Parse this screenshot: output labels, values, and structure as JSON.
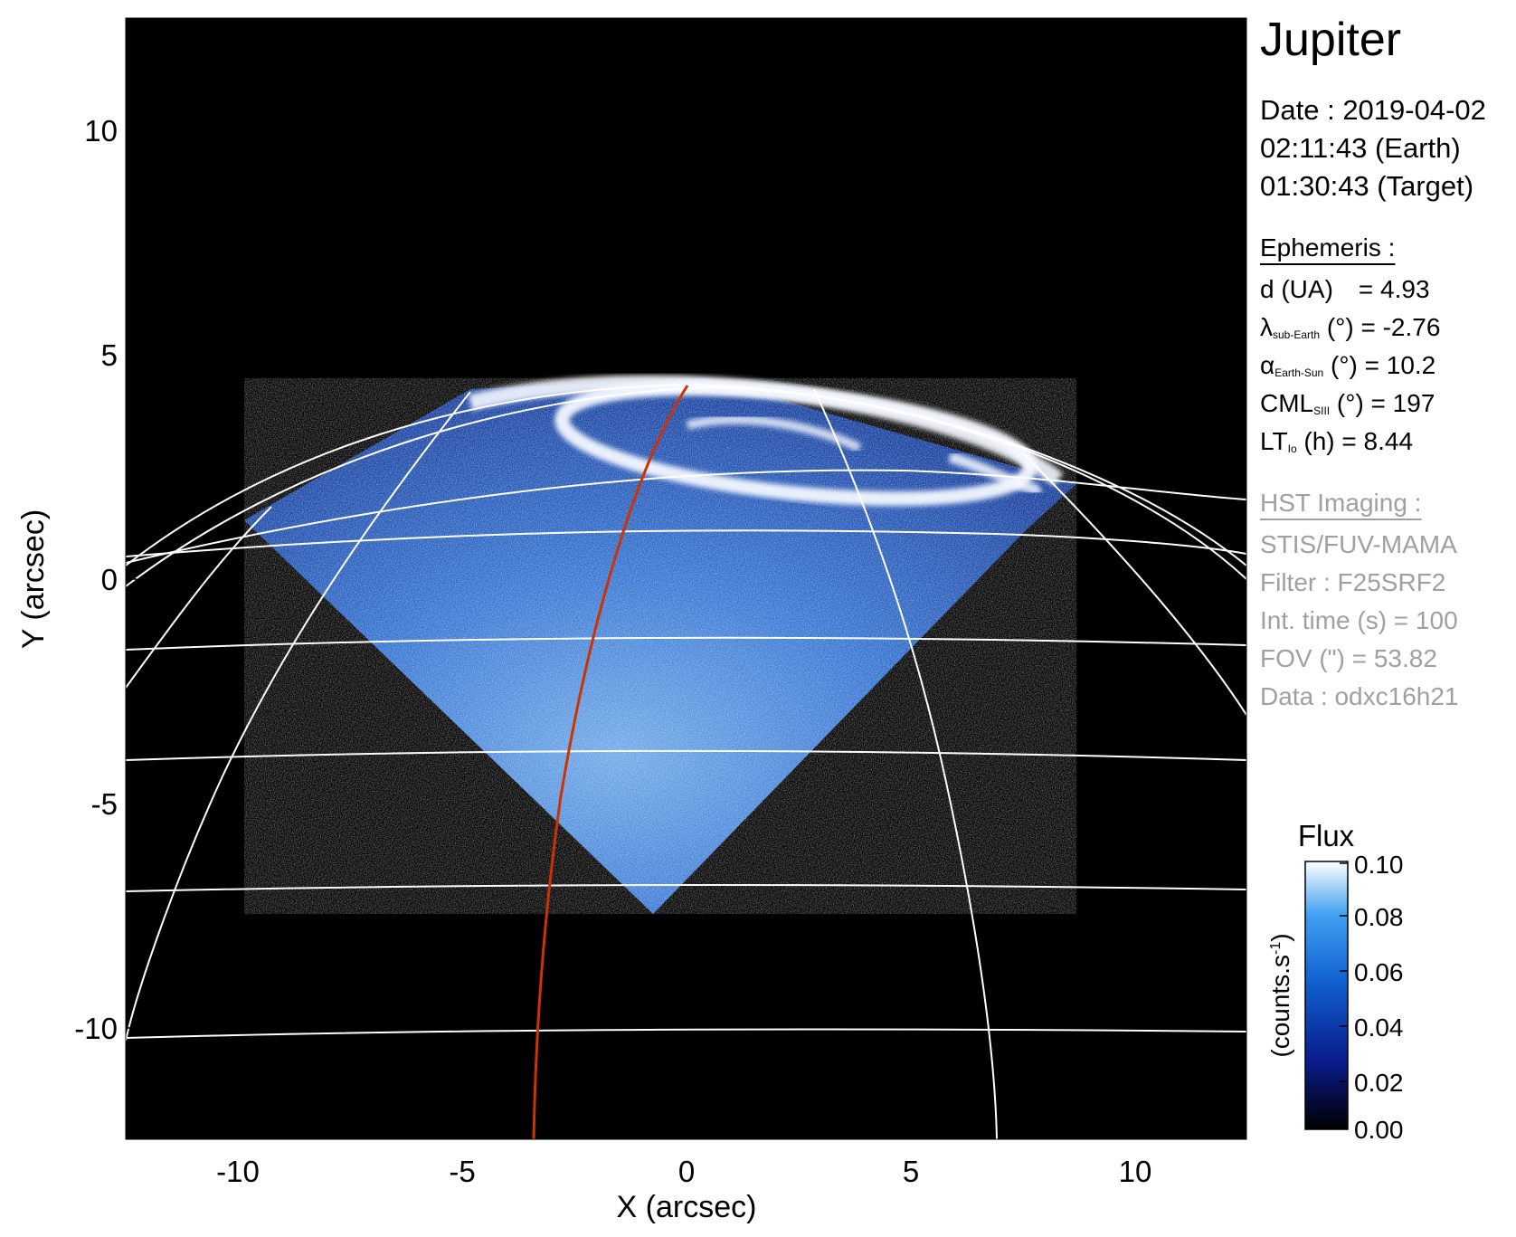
{
  "figure": {
    "x_label": "X (arcsec)",
    "y_label": "Y (arcsec)",
    "x_ticks": [
      "-10",
      "-5",
      "0",
      "5",
      "10"
    ],
    "y_ticks": [
      "10",
      "5",
      "0",
      "-5",
      "-10"
    ],
    "xlim": [
      -12.5,
      12.5
    ],
    "ylim": [
      -12.5,
      12.5
    ],
    "background_color": "#000000",
    "grid_color": "#ffffff",
    "meridian_highlight_color": "#cc3300"
  },
  "info": {
    "planet": "Jupiter",
    "date_line": "Date : 2019-04-02",
    "time_earth": "02:11:43 (Earth)",
    "time_target": "01:30:43 (Target)",
    "ephemeris_header": "Ephemeris :",
    "d_label": "d (UA)",
    "d_value": "= 4.93",
    "lambda_symbol": "λ",
    "lambda_sub": "sub-Earth",
    "lambda_value": "(°) = -2.76",
    "alpha_symbol": "α",
    "alpha_sub": "Earth-Sun",
    "alpha_value": "(°) = 10.2",
    "cml_label": "CML",
    "cml_sub": "SIII",
    "cml_value": "(°) = 197",
    "lt_label": "LT",
    "lt_sub": "Io",
    "lt_value": "(h) = 8.44",
    "hst_header": "HST Imaging :",
    "instrument": "STIS/FUV-MAMA",
    "filter": "Filter : F25SRF2",
    "int_time": "Int. time (s) = 100",
    "fov": "FOV (\") = 53.82",
    "data_id": "Data : odxc16h21"
  },
  "colorbar": {
    "title": "Flux",
    "unit_label": "(counts.s",
    "unit_exp": "-1",
    "unit_close": ")",
    "ticks": [
      "0.10",
      "0.08",
      "0.06",
      "0.04",
      "0.02",
      "0.00"
    ],
    "colors": [
      "#000000",
      "#0a1a8a",
      "#1060d0",
      "#40a0f0",
      "#ffffff"
    ]
  }
}
